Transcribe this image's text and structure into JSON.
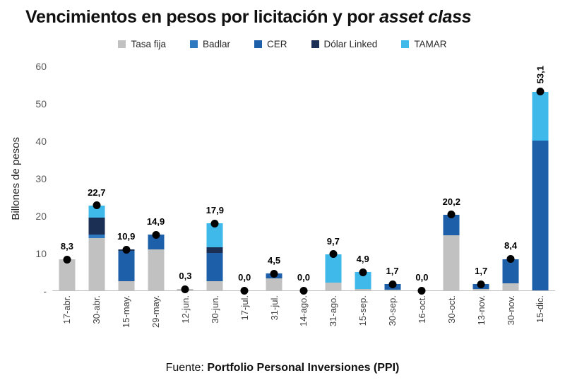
{
  "title": {
    "prefix": "Vencimientos en pesos por licitación y por ",
    "italic": "asset class"
  },
  "footer": {
    "prefix": "Fuente: ",
    "bold": "Portfolio Personal Inversiones (PPI)"
  },
  "chart_data": {
    "type": "bar",
    "subtype": "stacked-bar-with-total-markers",
    "categories": [
      "17-abr.",
      "30-abr.",
      "15-may.",
      "29-may.",
      "12-jun.",
      "30-jun.",
      "17-jul.",
      "31-jul.",
      "14-ago.",
      "31-ago.",
      "15-sep.",
      "30-sep.",
      "16-oct.",
      "30-oct.",
      "13-nov.",
      "30-nov.",
      "15-dic."
    ],
    "series": [
      {
        "name": "Tasa fija",
        "color": "#c1c1c1",
        "values": [
          8.3,
          14.0,
          2.5,
          11.0,
          0.3,
          2.5,
          0,
          3.3,
          0,
          2.0,
          0.4,
          0.2,
          0,
          14.8,
          0.3,
          1.8,
          0
        ]
      },
      {
        "name": "Badlar",
        "color": "#2e79c0",
        "values": [
          0,
          1.0,
          0,
          0,
          0,
          0,
          0,
          0,
          0,
          0,
          0,
          0,
          0,
          0,
          0,
          0,
          0
        ]
      },
      {
        "name": "CER",
        "color": "#1d5fa8",
        "values": [
          0,
          0,
          8.0,
          3.9,
          0,
          7.5,
          0,
          1.2,
          0,
          0,
          0,
          1.5,
          0,
          5.4,
          1.4,
          6.6,
          40.0
        ]
      },
      {
        "name": "Dólar Linked",
        "color": "#1b2f55",
        "values": [
          0,
          4.5,
          0.4,
          0,
          0,
          1.5,
          0,
          0,
          0,
          0,
          0,
          0,
          0,
          0,
          0,
          0,
          0
        ]
      },
      {
        "name": "TAMAR",
        "color": "#3fb9ea",
        "values": [
          0,
          3.2,
          0,
          0,
          0,
          6.4,
          0,
          0,
          0,
          7.7,
          4.5,
          0,
          0,
          0,
          0,
          0,
          13.1
        ]
      }
    ],
    "totals": [
      8.3,
      22.7,
      10.9,
      14.9,
      0.3,
      17.9,
      0.0,
      4.5,
      0.0,
      9.7,
      4.9,
      1.7,
      0.0,
      20.2,
      1.7,
      8.4,
      53.1
    ],
    "total_labels": [
      "8,3",
      "22,7",
      "10,9",
      "14,9",
      "0,3",
      "17,9",
      "0,0",
      "4,5",
      "0,0",
      "9,7",
      "4,9",
      "1,7",
      "0,0",
      "20,2",
      "1,7",
      "8,4",
      "53,1"
    ],
    "rotated_label_indices": [
      16
    ],
    "ylabel": "Billones de pesos",
    "ylim": [
      0,
      60
    ],
    "grid": false,
    "legend_position": "top",
    "marker_color": "#000000",
    "y_ticks": [
      {
        "value": 60,
        "label": "60"
      },
      {
        "value": 50,
        "label": "50"
      },
      {
        "value": 40,
        "label": "40"
      },
      {
        "value": 30,
        "label": "30"
      },
      {
        "value": 20,
        "label": "20"
      },
      {
        "value": 10,
        "label": "10"
      },
      {
        "value": 0,
        "label": "-"
      }
    ]
  }
}
